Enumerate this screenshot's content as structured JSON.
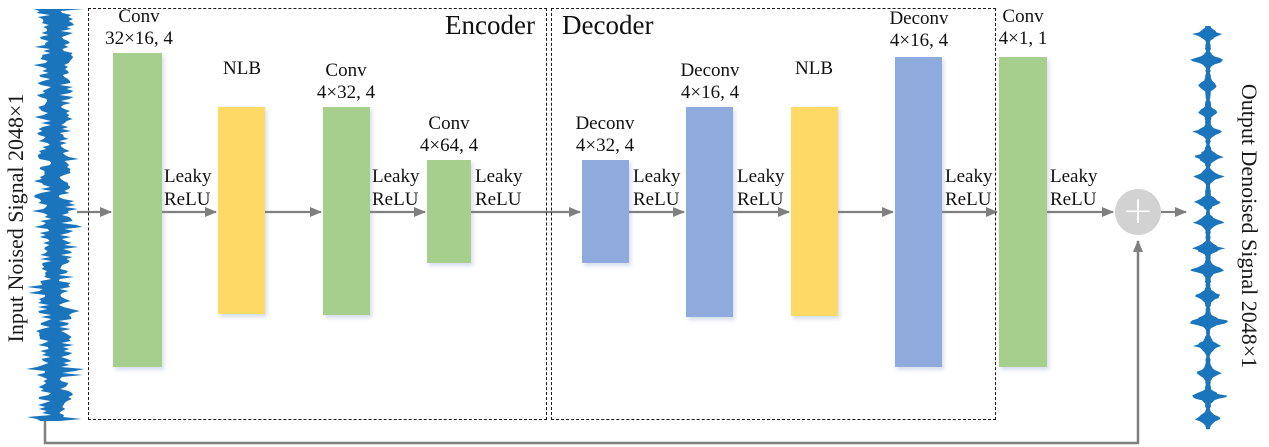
{
  "io": {
    "input_label": "Input Noised Signal 2048×1",
    "output_label": "Output Denoised Signal 2048×1"
  },
  "sections": {
    "encoder_title": "Encoder",
    "decoder_title": "Decoder"
  },
  "blocks": [
    {
      "line1": "Conv",
      "line2": "32×16, 4"
    },
    {
      "line1": "NLB",
      "line2": ""
    },
    {
      "line1": "Conv",
      "line2": "4×32, 4"
    },
    {
      "line1": "Conv",
      "line2": "4×64, 4"
    },
    {
      "line1": "Deconv",
      "line2": "4×32, 4"
    },
    {
      "line1": "Deconv",
      "line2": "4×16, 4"
    },
    {
      "line1": "NLB",
      "line2": ""
    },
    {
      "line1": "Deconv",
      "line2": "4×16, 4"
    },
    {
      "line1": "Conv",
      "line2": "4×1, 1"
    }
  ],
  "activation": {
    "line1": "Leaky",
    "line2": "ReLU"
  },
  "adder": {
    "symbol": "+"
  },
  "colors": {
    "conv": "#a6cf8e",
    "deconv": "#8faadc",
    "nlb": "#ffd966",
    "arrow": "#7f7f7f",
    "signal": "#1b75bc",
    "adder_fill": "#d2d2d2"
  }
}
